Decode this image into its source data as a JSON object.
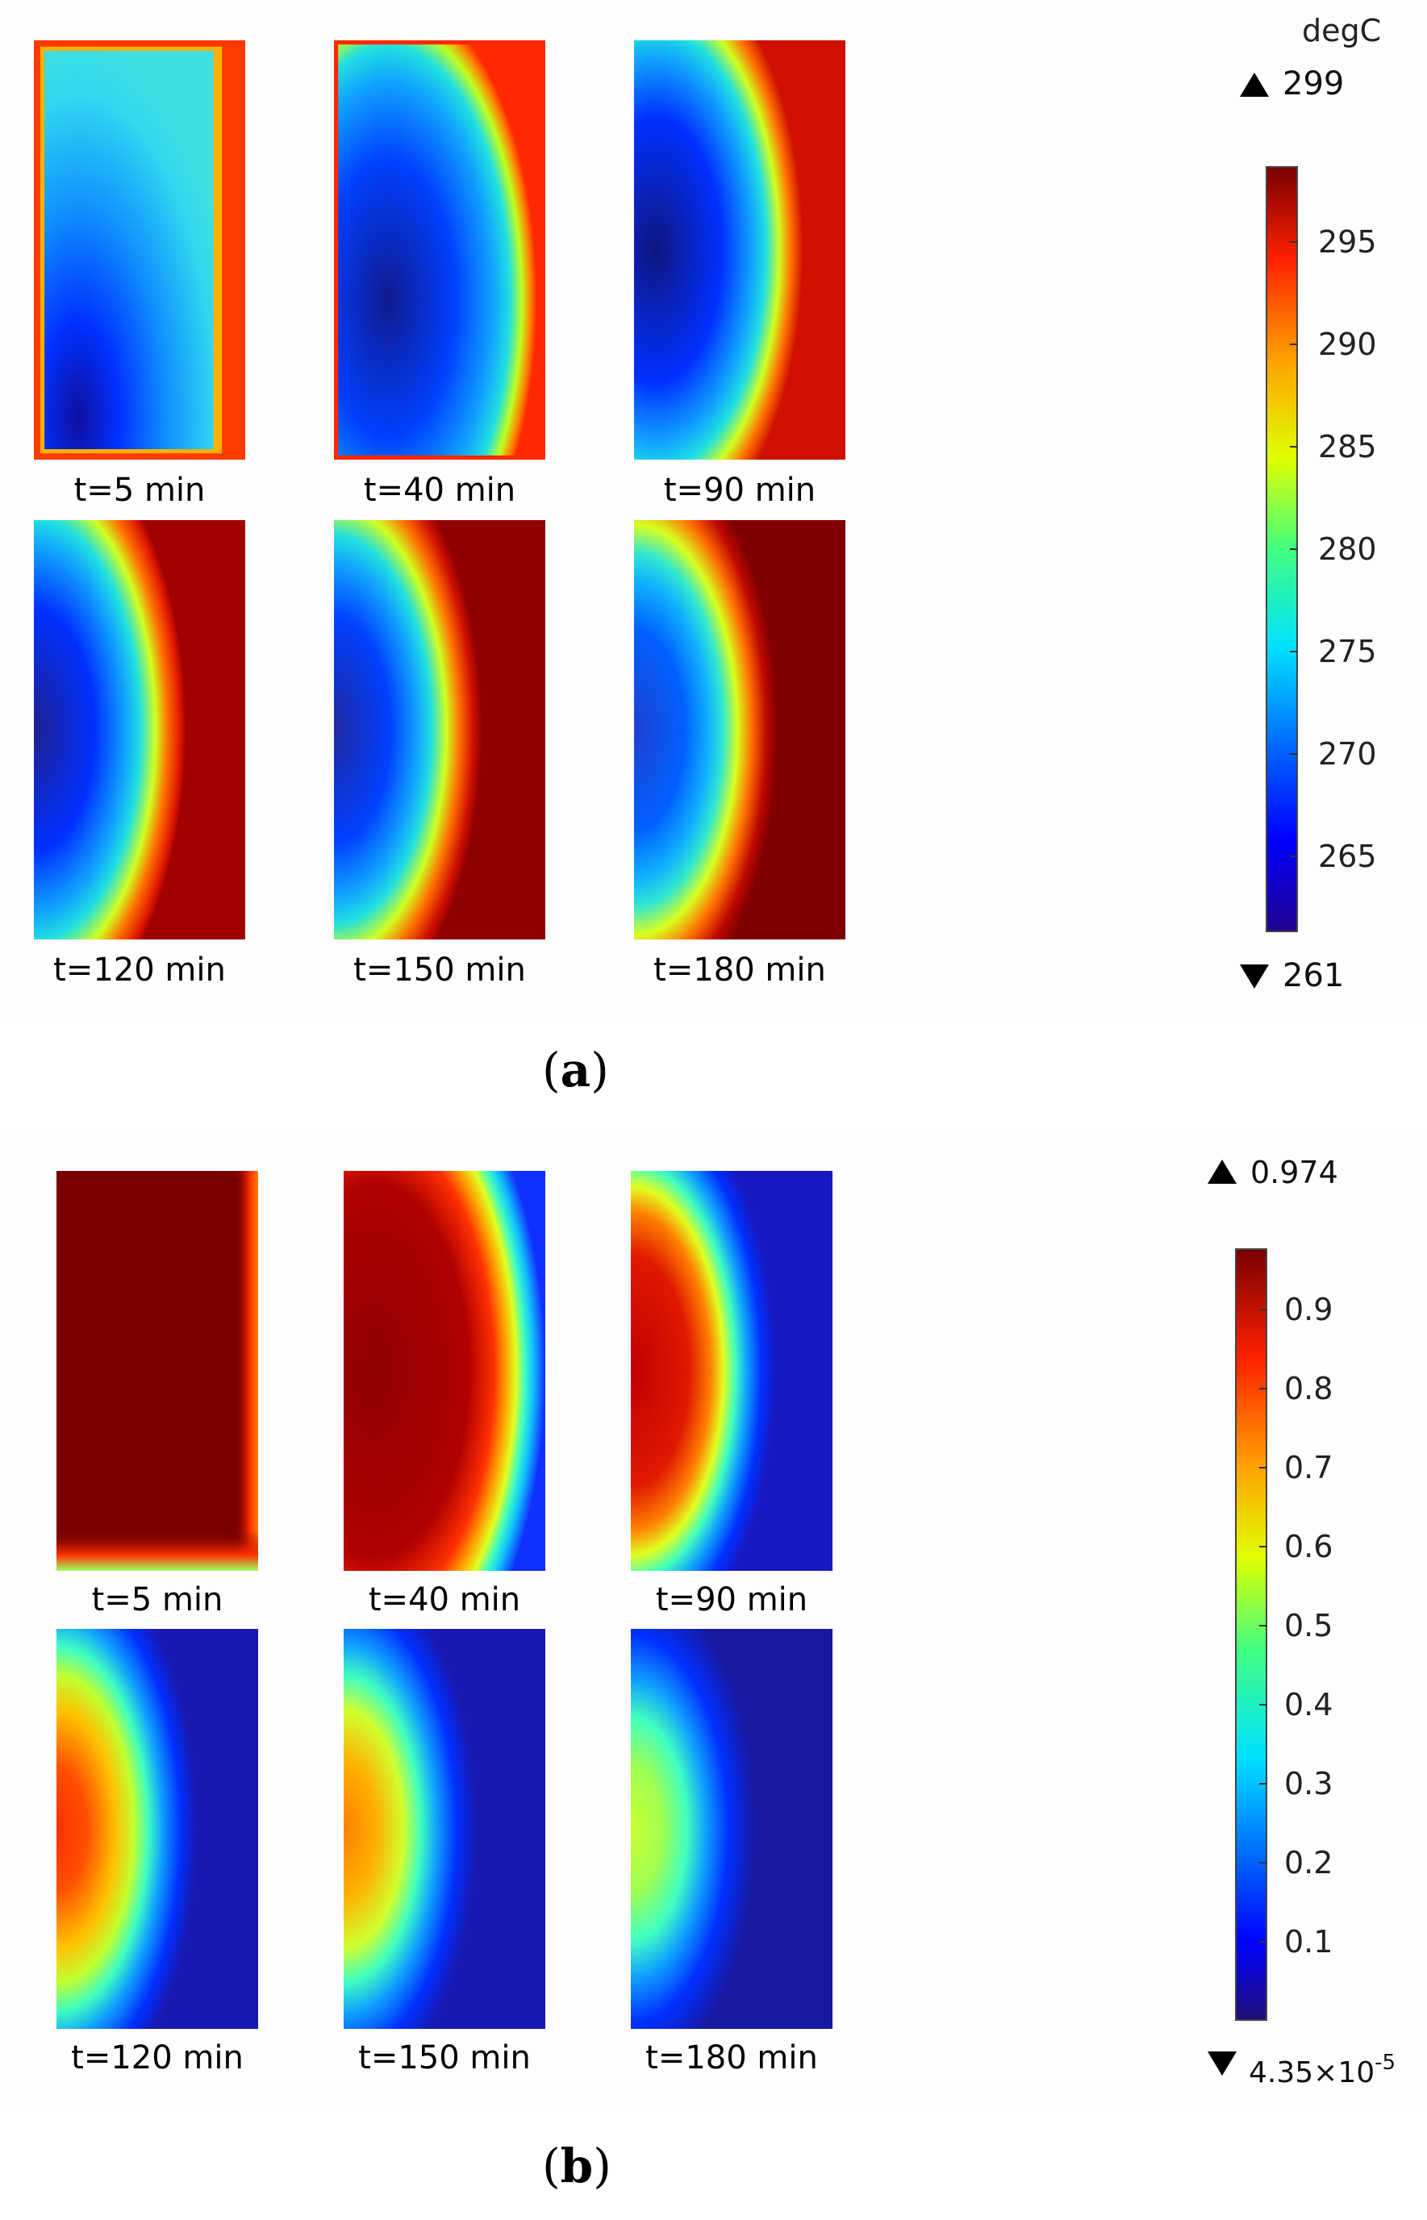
{
  "panel_a": {
    "caption_open": "(",
    "caption_letter": "a",
    "caption_close": ")",
    "unit": "degC",
    "max_label": "299",
    "min_label": "261",
    "ticks": [
      "295",
      "290",
      "285",
      "280",
      "275",
      "270",
      "265"
    ],
    "time_labels": [
      "t=5 min",
      "t=40 min",
      "t=90 min",
      "t=120 min",
      "t=150 min",
      "t=180 min"
    ]
  },
  "panel_b": {
    "caption_open": "(",
    "caption_letter": "b",
    "caption_close": ")",
    "max_label": "0.974",
    "min_label_mantissa": "4.35×10",
    "min_label_exponent": "-5",
    "ticks": [
      "0.9",
      "0.8",
      "0.7",
      "0.6",
      "0.5",
      "0.4",
      "0.3",
      "0.2",
      "0.1"
    ],
    "time_labels": [
      "t=5 min",
      "t=40 min",
      "t=90 min",
      "t=120 min",
      "t=150 min",
      "t=180 min"
    ]
  },
  "colors": {
    "dark_red": "#7a0000",
    "red": "#ff2000",
    "orange": "#ffa000",
    "yellow": "#e0ff00",
    "green": "#40ff80",
    "cyan": "#00e0ff",
    "blue": "#0070ff",
    "deep_blue": "#0000ff",
    "navy": "#200090"
  }
}
